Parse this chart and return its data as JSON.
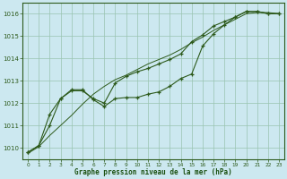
{
  "bg_color": "#cce8f0",
  "line_color": "#2d5a1b",
  "grid_color": "#99c4b0",
  "xlabel": "Graphe pression niveau de la mer (hPa)",
  "xlabel_color": "#1a5010",
  "xlim": [
    -0.5,
    23.5
  ],
  "ylim": [
    1009.5,
    1016.5
  ],
  "yticks": [
    1010,
    1011,
    1012,
    1013,
    1014,
    1015,
    1016
  ],
  "xticks": [
    0,
    1,
    2,
    3,
    4,
    5,
    6,
    7,
    8,
    9,
    10,
    11,
    12,
    13,
    14,
    15,
    16,
    17,
    18,
    19,
    20,
    21,
    22,
    23
  ],
  "series1_x": [
    0,
    1,
    2,
    3,
    4,
    5,
    6,
    7,
    8,
    9,
    10,
    11,
    12,
    13,
    14,
    15,
    16,
    17,
    18,
    19,
    20,
    21,
    22,
    23
  ],
  "series1_y": [
    1009.8,
    1010.1,
    1011.5,
    1012.2,
    1012.6,
    1012.6,
    1012.15,
    1011.85,
    1012.2,
    1012.25,
    1012.25,
    1012.4,
    1012.5,
    1012.75,
    1013.1,
    1013.3,
    1014.55,
    1015.1,
    1015.5,
    1015.85,
    1016.1,
    1016.1,
    1016.0,
    1016.0
  ],
  "series2_x": [
    0,
    1,
    2,
    3,
    4,
    5,
    6,
    7,
    8,
    9,
    10,
    11,
    12,
    13,
    14,
    15,
    16,
    17,
    18,
    19,
    20,
    21,
    22,
    23
  ],
  "series2_y": [
    1009.8,
    1010.1,
    1011.0,
    1012.2,
    1012.55,
    1012.55,
    1012.2,
    1012.0,
    1012.9,
    1013.2,
    1013.4,
    1013.55,
    1013.75,
    1013.95,
    1014.2,
    1014.75,
    1015.05,
    1015.45,
    1015.65,
    1015.85,
    1016.1,
    1016.1,
    1016.0,
    1016.0
  ],
  "series3_x": [
    0,
    1,
    2,
    3,
    4,
    5,
    6,
    7,
    8,
    9,
    10,
    11,
    12,
    13,
    14,
    15,
    16,
    17,
    18,
    19,
    20,
    21,
    22,
    23
  ],
  "series3_y": [
    1009.75,
    1010.05,
    1010.55,
    1011.0,
    1011.45,
    1011.95,
    1012.4,
    1012.75,
    1013.05,
    1013.25,
    1013.5,
    1013.75,
    1013.95,
    1014.15,
    1014.4,
    1014.7,
    1014.95,
    1015.25,
    1015.5,
    1015.75,
    1016.0,
    1016.05,
    1016.05,
    1016.0
  ]
}
